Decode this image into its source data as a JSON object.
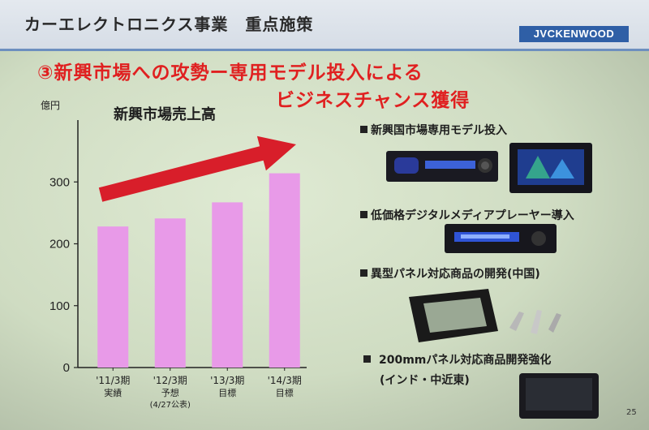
{
  "header": {
    "section_title": "カーエレクトロニクス事業　重点施策",
    "logo": "JVCKENWOOD"
  },
  "headline": {
    "line1": "③新興市場への攻勢ー専用モデル投入による",
    "line2": "ビジネスチャンス獲得"
  },
  "chart_data": {
    "type": "bar",
    "title": "新興市場売上高",
    "ylabel": "億円",
    "ylim": [
      0,
      400
    ],
    "yticks": [
      "0",
      "100",
      "200",
      "300"
    ],
    "categories": [
      {
        "line1": "'11/3期",
        "line2": "実績",
        "line3": ""
      },
      {
        "line1": "'12/3期",
        "line2": "予想",
        "line3": "(4/27公表)"
      },
      {
        "line1": "'13/3期",
        "line2": "目標",
        "line3": ""
      },
      {
        "line1": "'14/3期",
        "line2": "目標",
        "line3": ""
      }
    ],
    "values": [
      228,
      241,
      267,
      314
    ],
    "bar_color": "#e89ae8",
    "arrow_color": "#d81e2a",
    "grid": false
  },
  "bullets": [
    {
      "text": "新興国市場専用モデル投入"
    },
    {
      "text": "低価格デジタルメディアプレーヤー導入"
    },
    {
      "text": "異型パネル対応商品の開発(中国)"
    },
    {
      "text": "200mmパネル対応商品開発強化",
      "sub": "(インド・中近東)"
    }
  ],
  "page_number": "25"
}
